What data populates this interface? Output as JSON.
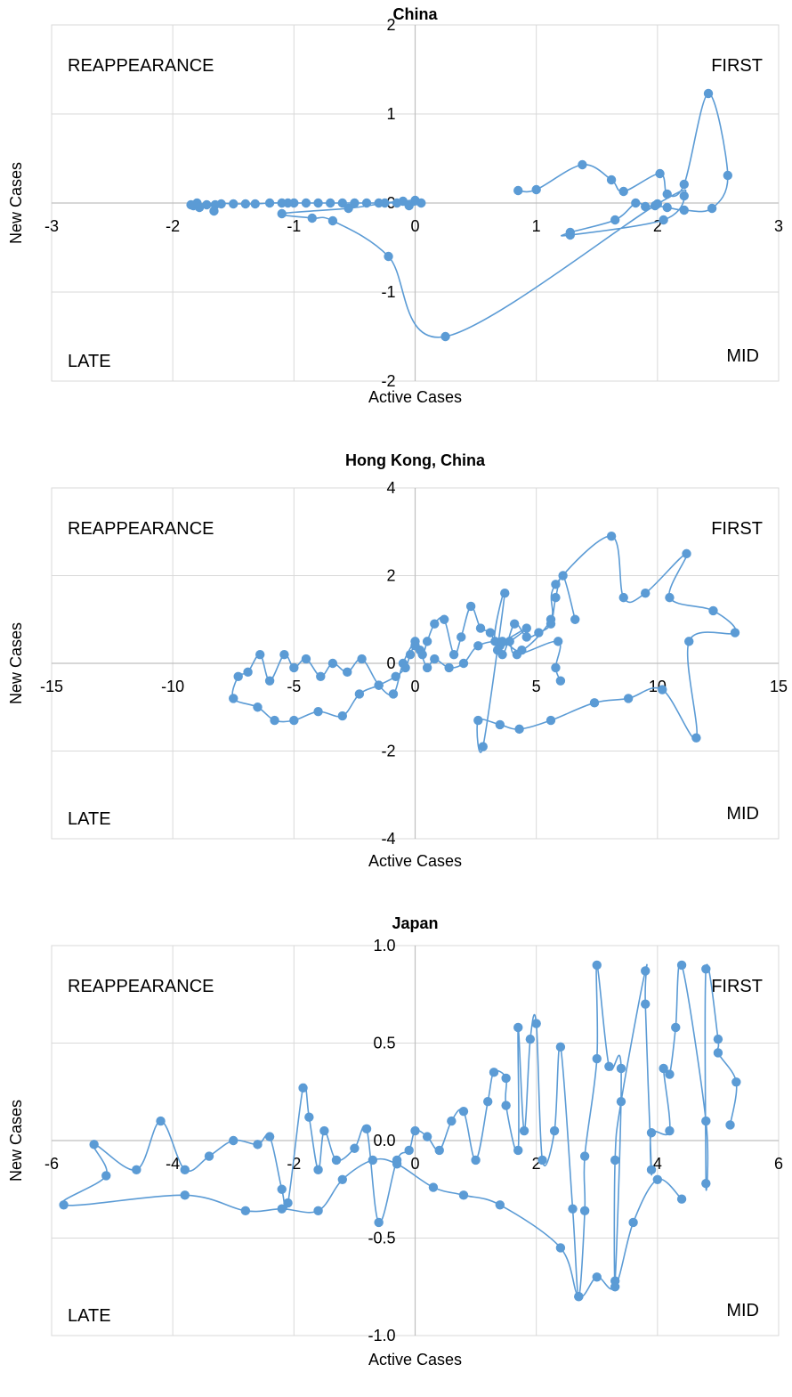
{
  "chart_data": [
    {
      "type": "scatter",
      "title": "China",
      "xlabel": "Active Cases",
      "ylabel": "New Cases",
      "xlim": [
        -3,
        3
      ],
      "ylim": [
        -2,
        2
      ],
      "x_ticks": [
        "-3",
        "-2",
        "-1",
        "0",
        "1",
        "2",
        "3"
      ],
      "y_ticks": [
        "-2",
        "-1",
        "0",
        "1",
        "2"
      ],
      "quadrant_labels": {
        "top_left": "REAPPEARANCE",
        "top_right": "FIRST",
        "bottom_left": "LATE",
        "bottom_right": "MID"
      },
      "grid": true,
      "series": [
        {
          "color": "#5B9BD5",
          "points": [
            [
              0.85,
              0.14
            ],
            [
              1.0,
              0.15
            ],
            [
              1.38,
              0.43
            ],
            [
              1.62,
              0.26
            ],
            [
              1.72,
              0.13
            ],
            [
              2.02,
              0.33
            ],
            [
              2.08,
              0.1
            ],
            [
              2.22,
              0.21
            ],
            [
              2.42,
              1.23
            ],
            [
              2.58,
              0.31
            ],
            [
              2.45,
              -0.06
            ],
            [
              2.22,
              -0.08
            ],
            [
              2.08,
              -0.05
            ],
            [
              1.98,
              -0.03
            ],
            [
              1.9,
              -0.04
            ],
            [
              1.82,
              0.0
            ],
            [
              1.65,
              -0.19
            ],
            [
              1.28,
              -0.33
            ],
            [
              1.28,
              -0.36
            ],
            [
              2.05,
              -0.19
            ],
            [
              2.22,
              0.08
            ],
            [
              2.0,
              -0.01
            ],
            [
              0.25,
              -1.5
            ],
            [
              -0.22,
              -0.6
            ],
            [
              -0.68,
              -0.2
            ],
            [
              -0.85,
              -0.17
            ],
            [
              -1.1,
              -0.12
            ],
            [
              -0.55,
              -0.06
            ],
            [
              -0.25,
              0.0
            ],
            [
              -0.1,
              0.02
            ],
            [
              0.0,
              0.03
            ],
            [
              0.05,
              0.0
            ],
            [
              -0.05,
              -0.03
            ],
            [
              -0.15,
              0.0
            ],
            [
              -0.3,
              0.0
            ],
            [
              -0.4,
              0.0
            ],
            [
              -0.5,
              0.0
            ],
            [
              -0.6,
              0.0
            ],
            [
              -0.7,
              0.0
            ],
            [
              -0.8,
              0.0
            ],
            [
              -0.9,
              0.0
            ],
            [
              -1.0,
              0.0
            ],
            [
              -1.05,
              0.0
            ],
            [
              -1.1,
              0.0
            ],
            [
              -1.2,
              0.0
            ],
            [
              -1.32,
              -0.01
            ],
            [
              -1.4,
              -0.01
            ],
            [
              -1.5,
              -0.01
            ],
            [
              -1.6,
              -0.01
            ],
            [
              -1.66,
              -0.09
            ],
            [
              -1.65,
              -0.02
            ],
            [
              -1.72,
              -0.02
            ],
            [
              -1.8,
              0.0
            ],
            [
              -1.85,
              -0.02
            ],
            [
              -1.78,
              -0.05
            ],
            [
              -1.83,
              -0.03
            ]
          ]
        }
      ]
    },
    {
      "type": "scatter",
      "title": "Hong Kong, China",
      "xlabel": "Active Cases",
      "ylabel": "New Cases",
      "xlim": [
        -15,
        15
      ],
      "ylim": [
        -4,
        4
      ],
      "x_ticks": [
        "-15",
        "-10",
        "-5",
        "0",
        "5",
        "10",
        "15"
      ],
      "y_ticks": [
        "-4",
        "-2",
        "0",
        "2",
        "4"
      ],
      "quadrant_labels": {
        "top_left": "REAPPEARANCE",
        "top_right": "FIRST",
        "bottom_left": "LATE",
        "bottom_right": "MID"
      },
      "grid": true,
      "series": [
        {
          "color": "#5B9BD5",
          "points": [
            [
              6.0,
              -0.4
            ],
            [
              5.8,
              -0.1
            ],
            [
              5.9,
              0.5
            ],
            [
              4.2,
              0.2
            ],
            [
              3.9,
              0.5
            ],
            [
              3.5,
              0.4
            ],
            [
              3.4,
              0.3
            ],
            [
              4.6,
              0.8
            ],
            [
              3.3,
              0.5
            ],
            [
              3.7,
              1.6
            ],
            [
              2.8,
              -1.9
            ],
            [
              2.6,
              -1.3
            ],
            [
              3.5,
              -1.4
            ],
            [
              4.3,
              -1.5
            ],
            [
              5.6,
              -1.3
            ],
            [
              7.4,
              -0.9
            ],
            [
              8.8,
              -0.8
            ],
            [
              10.2,
              -0.6
            ],
            [
              11.6,
              -1.7
            ],
            [
              11.3,
              0.5
            ],
            [
              13.2,
              0.7
            ],
            [
              12.3,
              1.2
            ],
            [
              10.5,
              1.5
            ],
            [
              11.2,
              2.5
            ],
            [
              9.5,
              1.6
            ],
            [
              8.6,
              1.5
            ],
            [
              8.1,
              2.9
            ],
            [
              5.8,
              1.8
            ],
            [
              5.6,
              1.0
            ],
            [
              4.4,
              0.3
            ],
            [
              3.6,
              0.5
            ],
            [
              2.6,
              0.4
            ],
            [
              2.0,
              0.0
            ],
            [
              1.4,
              -0.1
            ],
            [
              0.8,
              0.1
            ],
            [
              0.5,
              -0.1
            ],
            [
              0.2,
              0.3
            ],
            [
              0.0,
              0.5
            ],
            [
              -0.5,
              0.0
            ],
            [
              -0.9,
              -0.7
            ],
            [
              -1.5,
              -0.5
            ],
            [
              -2.2,
              0.1
            ],
            [
              -2.8,
              -0.2
            ],
            [
              -3.4,
              0.0
            ],
            [
              -3.9,
              -0.3
            ],
            [
              -4.5,
              0.1
            ],
            [
              -5.0,
              -0.1
            ],
            [
              -5.4,
              0.2
            ],
            [
              -6.0,
              -0.4
            ],
            [
              -6.4,
              0.2
            ],
            [
              -6.9,
              -0.2
            ],
            [
              -7.3,
              -0.3
            ],
            [
              -7.5,
              -0.8
            ],
            [
              -6.5,
              -1.0
            ],
            [
              -5.8,
              -1.3
            ],
            [
              -5.0,
              -1.3
            ],
            [
              -4.0,
              -1.1
            ],
            [
              -3.0,
              -1.2
            ],
            [
              -2.3,
              -0.7
            ],
            [
              -1.5,
              -0.5
            ],
            [
              -0.8,
              -0.3
            ],
            [
              -0.4,
              -0.1
            ],
            [
              -0.2,
              0.2
            ],
            [
              0.0,
              0.4
            ],
            [
              0.3,
              0.2
            ],
            [
              0.5,
              0.5
            ],
            [
              0.8,
              0.9
            ],
            [
              1.2,
              1.0
            ],
            [
              1.6,
              0.2
            ],
            [
              1.9,
              0.6
            ],
            [
              2.3,
              1.3
            ],
            [
              2.7,
              0.8
            ],
            [
              3.1,
              0.7
            ],
            [
              3.6,
              0.2
            ],
            [
              4.1,
              0.9
            ],
            [
              4.6,
              0.6
            ],
            [
              5.1,
              0.7
            ],
            [
              5.6,
              0.9
            ],
            [
              5.8,
              1.5
            ],
            [
              6.1,
              2.0
            ],
            [
              6.6,
              1.0
            ]
          ]
        }
      ]
    },
    {
      "type": "scatter",
      "title": "Japan",
      "xlabel": "Active Cases",
      "ylabel": "New Cases",
      "xlim": [
        -6,
        6
      ],
      "ylim": [
        -1.0,
        1.0
      ],
      "x_ticks": [
        "-6",
        "-4",
        "-2",
        "0",
        "2",
        "4",
        "6"
      ],
      "y_ticks": [
        "-1.0",
        "-0.5",
        "0.0",
        "0.5",
        "1.0"
      ],
      "quadrant_labels": {
        "top_left": "REAPPEARANCE",
        "top_right": "FIRST",
        "bottom_left": "LATE",
        "bottom_right": "MID"
      },
      "grid": true,
      "series": [
        {
          "color": "#5B9BD5",
          "points": [
            [
              5.2,
              0.08
            ],
            [
              5.3,
              0.3
            ],
            [
              5.0,
              0.45
            ],
            [
              5.0,
              0.52
            ],
            [
              4.8,
              0.88
            ],
            [
              4.8,
              -0.22
            ],
            [
              4.8,
              0.1
            ],
            [
              4.4,
              0.9
            ],
            [
              4.3,
              0.58
            ],
            [
              4.2,
              0.34
            ],
            [
              4.1,
              0.37
            ],
            [
              4.2,
              0.05
            ],
            [
              3.9,
              0.04
            ],
            [
              3.9,
              -0.15
            ],
            [
              3.8,
              0.7
            ],
            [
              3.8,
              0.87
            ],
            [
              3.4,
              0.2
            ],
            [
              3.3,
              -0.1
            ],
            [
              3.3,
              -0.72
            ],
            [
              3.4,
              0.37
            ],
            [
              3.2,
              0.38
            ],
            [
              3.0,
              0.9
            ],
            [
              3.0,
              0.42
            ],
            [
              2.8,
              -0.08
            ],
            [
              2.8,
              -0.36
            ],
            [
              2.7,
              -0.8
            ],
            [
              2.6,
              -0.35
            ],
            [
              2.4,
              0.48
            ],
            [
              2.3,
              0.05
            ],
            [
              2.1,
              -0.1
            ],
            [
              2.0,
              0.6
            ],
            [
              1.9,
              0.52
            ],
            [
              1.8,
              0.05
            ],
            [
              1.7,
              0.58
            ],
            [
              1.7,
              -0.05
            ],
            [
              1.5,
              0.18
            ],
            [
              1.5,
              0.32
            ],
            [
              1.3,
              0.35
            ],
            [
              1.2,
              0.2
            ],
            [
              1.0,
              -0.1
            ],
            [
              0.8,
              0.15
            ],
            [
              0.6,
              0.1
            ],
            [
              0.4,
              -0.05
            ],
            [
              0.2,
              0.02
            ],
            [
              0.0,
              0.05
            ],
            [
              -0.1,
              -0.05
            ],
            [
              -0.3,
              -0.1
            ],
            [
              -0.6,
              -0.42
            ],
            [
              -0.8,
              0.06
            ],
            [
              -1.0,
              -0.04
            ],
            [
              -1.3,
              -0.1
            ],
            [
              -1.5,
              0.05
            ],
            [
              -1.6,
              -0.15
            ],
            [
              -1.75,
              0.12
            ],
            [
              -1.85,
              0.27
            ],
            [
              -2.1,
              -0.32
            ],
            [
              -2.2,
              -0.25
            ],
            [
              -2.4,
              0.02
            ],
            [
              -2.6,
              -0.02
            ],
            [
              -3.0,
              0.0
            ],
            [
              -3.4,
              -0.08
            ],
            [
              -3.8,
              -0.15
            ],
            [
              -4.2,
              0.1
            ],
            [
              -4.6,
              -0.15
            ],
            [
              -5.3,
              -0.02
            ],
            [
              -5.1,
              -0.18
            ],
            [
              -5.8,
              -0.33
            ],
            [
              -3.8,
              -0.28
            ],
            [
              -2.8,
              -0.36
            ],
            [
              -2.2,
              -0.35
            ],
            [
              -1.6,
              -0.36
            ],
            [
              -1.2,
              -0.2
            ],
            [
              -0.7,
              -0.1
            ],
            [
              -0.3,
              -0.12
            ],
            [
              0.3,
              -0.24
            ],
            [
              0.8,
              -0.28
            ],
            [
              1.4,
              -0.33
            ],
            [
              2.4,
              -0.55
            ],
            [
              2.7,
              -0.8
            ],
            [
              3.0,
              -0.7
            ],
            [
              3.3,
              -0.75
            ],
            [
              3.6,
              -0.42
            ],
            [
              4.0,
              -0.2
            ],
            [
              4.4,
              -0.3
            ]
          ]
        }
      ]
    }
  ]
}
